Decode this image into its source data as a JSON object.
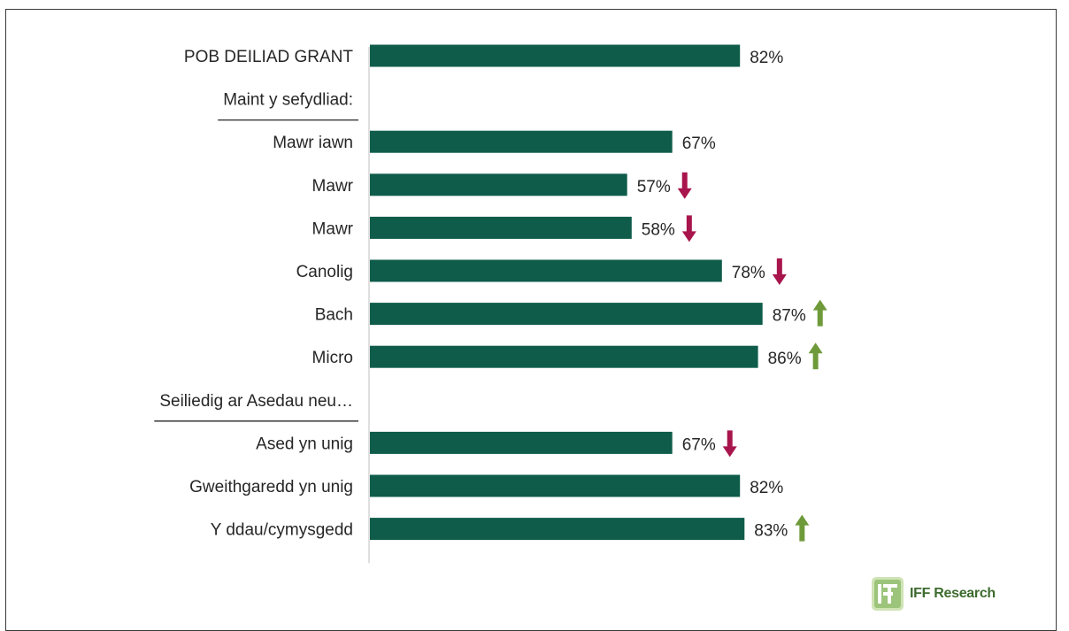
{
  "chart_data": {
    "type": "bar",
    "orientation": "horizontal",
    "xlim": [
      0,
      100
    ],
    "rows": [
      {
        "label": "POB DEILIAD GRANT",
        "value": 82,
        "value_label": "82%",
        "arrow": "none",
        "kind": "bar"
      },
      {
        "label": "Maint y sefydliad:",
        "kind": "header"
      },
      {
        "label": "Mawr iawn",
        "value": 67,
        "value_label": "67%",
        "arrow": "none",
        "kind": "bar"
      },
      {
        "label": "Mawr",
        "value": 57,
        "value_label": "57%",
        "arrow": "down",
        "kind": "bar"
      },
      {
        "label": "Mawr",
        "value": 58,
        "value_label": "58%",
        "arrow": "down",
        "kind": "bar"
      },
      {
        "label": "Canolig",
        "value": 78,
        "value_label": "78%",
        "arrow": "down",
        "kind": "bar"
      },
      {
        "label": "Bach",
        "value": 87,
        "value_label": "87%",
        "arrow": "up",
        "kind": "bar"
      },
      {
        "label": "Micro",
        "value": 86,
        "value_label": "86%",
        "arrow": "up",
        "kind": "bar"
      },
      {
        "label": "Seiliedig ar Asedau neu…",
        "kind": "header"
      },
      {
        "label": "Ased yn unig",
        "value": 67,
        "value_label": "67%",
        "arrow": "down",
        "kind": "bar"
      },
      {
        "label": "Gweithgaredd yn unig",
        "value": 82,
        "value_label": "82%",
        "arrow": "none",
        "kind": "bar"
      },
      {
        "label": "Y ddau/cymysgedd",
        "value": 83,
        "value_label": "83%",
        "arrow": "up",
        "kind": "bar"
      }
    ],
    "colors": {
      "bar": "#0f5c4b",
      "arrow_down": "#a8154d",
      "arrow_up": "#6f9a3a"
    }
  },
  "logo": {
    "text": "IFF Research"
  }
}
